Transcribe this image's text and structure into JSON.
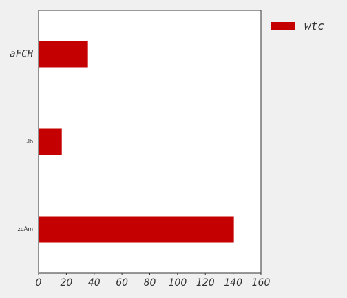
{
  "chart_data": {
    "type": "bar",
    "orientation": "horizontal",
    "categories": [
      "aFCH",
      "Jb",
      "zcAm"
    ],
    "series": [
      {
        "name": "wtc",
        "color": "#c40000",
        "values": [
          35.5,
          16.7,
          140.5
        ]
      }
    ],
    "xlim": [
      0,
      160
    ],
    "xticks": [
      "0",
      "20",
      "40",
      "60",
      "80",
      "100",
      "120",
      "140",
      "160"
    ],
    "grid": false,
    "legend": {
      "position": "outside-top-right"
    },
    "background": "#ffffff",
    "figure_background": "#f0f0f0"
  }
}
